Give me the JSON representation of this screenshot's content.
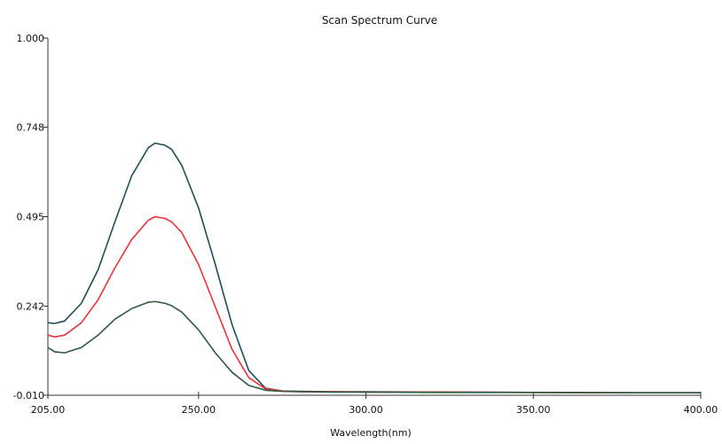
{
  "chart_data": {
    "type": "line",
    "title": "Scan Spectrum Curve",
    "xlabel": "Wavelength(nm)",
    "ylabel": "",
    "xlim": [
      205.0,
      400.0
    ],
    "ylim": [
      -0.01,
      1.0
    ],
    "xticks": [
      "205.00",
      "250.00",
      "300.00",
      "350.00",
      "400.00"
    ],
    "xtick_values": [
      205,
      250,
      300,
      350,
      400
    ],
    "yticks": [
      "-0.010",
      "0.242",
      "0.495",
      "0.748",
      "1.000"
    ],
    "ytick_values": [
      -0.01,
      0.242,
      0.495,
      0.748,
      1.0
    ],
    "grid": false,
    "legend": "none",
    "series": [
      {
        "color": "#1e4f57",
        "x": [
          205,
          207,
          210,
          215,
          220,
          225,
          230,
          235,
          237,
          240,
          242,
          245,
          250,
          255,
          260,
          265,
          270,
          275,
          280,
          290,
          300,
          320,
          350,
          380,
          400
        ],
        "y": [
          0.195,
          0.193,
          0.2,
          0.25,
          0.345,
          0.48,
          0.61,
          0.69,
          0.703,
          0.697,
          0.685,
          0.64,
          0.52,
          0.36,
          0.19,
          0.06,
          0.01,
          0.002,
          0.001,
          0.0,
          0.0,
          -0.001,
          -0.002,
          -0.003,
          -0.003
        ]
      },
      {
        "color": "#e8333a",
        "x": [
          205,
          207,
          210,
          215,
          220,
          225,
          230,
          235,
          237,
          240,
          242,
          245,
          250,
          255,
          260,
          265,
          270,
          275,
          280,
          290,
          300,
          320,
          350,
          380,
          400
        ],
        "y": [
          0.16,
          0.155,
          0.16,
          0.195,
          0.26,
          0.35,
          0.43,
          0.485,
          0.495,
          0.49,
          0.48,
          0.45,
          0.36,
          0.24,
          0.12,
          0.04,
          0.008,
          0.002,
          0.0,
          0.0,
          -0.001,
          -0.001,
          -0.002,
          -0.003,
          -0.003
        ]
      },
      {
        "color": "#2e5b3c",
        "x": [
          205,
          207,
          210,
          215,
          220,
          225,
          230,
          235,
          237,
          240,
          242,
          245,
          250,
          255,
          260,
          265,
          270,
          275,
          280,
          290,
          300,
          320,
          350,
          380,
          400
        ],
        "y": [
          0.125,
          0.113,
          0.11,
          0.125,
          0.16,
          0.205,
          0.235,
          0.253,
          0.255,
          0.25,
          0.243,
          0.225,
          0.175,
          0.11,
          0.055,
          0.018,
          0.004,
          0.001,
          0.0,
          -0.001,
          -0.001,
          -0.002,
          -0.002,
          -0.003,
          -0.003
        ]
      }
    ]
  }
}
